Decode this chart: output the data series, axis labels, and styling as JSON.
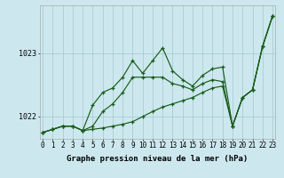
{
  "xlabel": "Graphe pression niveau de la mer (hPa)",
  "background_color": "#cce8ee",
  "grid_color": "#aaccd4",
  "line_color": "#1a5c1a",
  "x_hours": [
    0,
    1,
    2,
    3,
    4,
    5,
    6,
    7,
    8,
    9,
    10,
    11,
    12,
    13,
    14,
    15,
    16,
    17,
    18,
    19,
    20,
    21,
    22,
    23
  ],
  "series1": [
    1021.75,
    1021.8,
    1021.85,
    1021.85,
    1021.78,
    1021.8,
    1021.82,
    1021.85,
    1021.88,
    1021.92,
    1022.0,
    1022.08,
    1022.15,
    1022.2,
    1022.25,
    1022.3,
    1022.38,
    1022.45,
    1022.48,
    1021.85,
    1022.3,
    1022.42,
    1023.1,
    1023.58
  ],
  "series2": [
    1021.75,
    1021.8,
    1021.85,
    1021.85,
    1021.78,
    1021.85,
    1022.08,
    1022.2,
    1022.38,
    1022.62,
    1022.62,
    1022.62,
    1022.62,
    1022.52,
    1022.48,
    1022.42,
    1022.52,
    1022.58,
    1022.55,
    1021.85,
    1022.3,
    1022.42,
    1023.1,
    1023.58
  ],
  "series3": [
    1021.75,
    1021.8,
    1021.85,
    1021.85,
    1021.78,
    1022.18,
    1022.38,
    1022.45,
    1022.62,
    1022.88,
    1022.68,
    1022.88,
    1023.08,
    1022.72,
    1022.58,
    1022.48,
    1022.65,
    1022.75,
    1022.78,
    1021.85,
    1022.3,
    1022.42,
    1023.1,
    1023.58
  ],
  "ylim": [
    1021.65,
    1023.75
  ],
  "ytick_positions": [
    1022.0,
    1023.0
  ],
  "ytick_labels": [
    "1022",
    "1023"
  ],
  "xlim": [
    -0.3,
    23.3
  ],
  "xlabel_fontsize": 6.5,
  "tick_fontsize": 5.5
}
